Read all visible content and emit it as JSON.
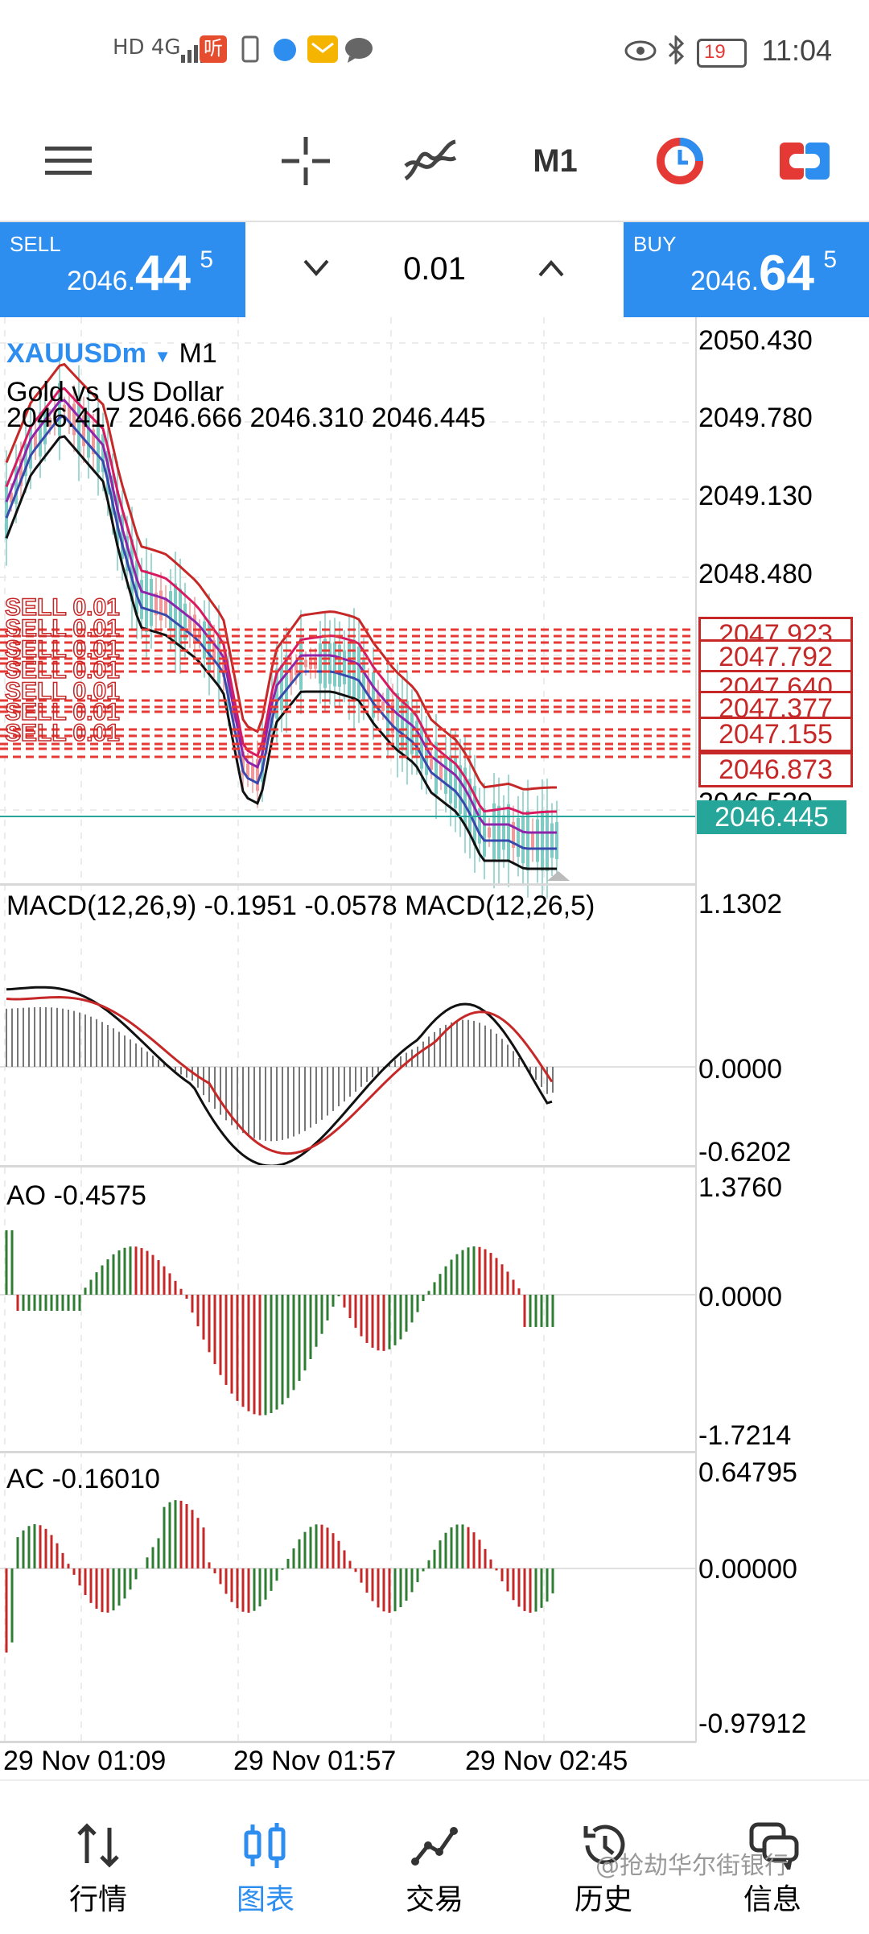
{
  "status_bar": {
    "network": "HD 4G",
    "battery": "19",
    "time": "11:04",
    "app_icon": "听"
  },
  "toolbar": {
    "timeframe": "M1"
  },
  "trade": {
    "sell_label": "SELL",
    "sell_price_main": "2046.",
    "sell_price_big": "44",
    "sell_price_sup": "5",
    "buy_label": "BUY",
    "buy_price_main": "2046.",
    "buy_price_big": "64",
    "buy_price_sup": "5",
    "lot": "0.01"
  },
  "main_chart": {
    "symbol": "XAUUSDm",
    "timeframe": "M1",
    "description": "Gold vs US Dollar",
    "ohlc": "2046.417 2046.666 2046.310 2046.445",
    "axis": [
      "2050.430",
      "2049.780",
      "2049.130",
      "2048.480"
    ],
    "order_prices": [
      "2047.923",
      "2047.792",
      "2047.640",
      "2047.377",
      "2047.155",
      "2046.873"
    ],
    "cut_price": "2046.520",
    "current_price": "2046.445",
    "order_label": "SELL 0.01"
  },
  "macd": {
    "title": "MACD(12,26,9) -0.1951 -0.0578 MACD(12,26,5)",
    "axis": [
      "1.1302",
      "0.0000",
      "-0.6202"
    ]
  },
  "ao": {
    "title": "AO -0.4575",
    "axis": [
      "1.3760",
      "0.0000",
      "-1.7214"
    ]
  },
  "ac": {
    "title": "AC -0.16010",
    "axis": [
      "0.64795",
      "0.00000",
      "-0.97912"
    ]
  },
  "time_labels": [
    "29 Nov 01:09",
    "29 Nov 01:57",
    "29 Nov 02:45"
  ],
  "nav": {
    "items": [
      "行情",
      "图表",
      "交易",
      "历史",
      "信息"
    ],
    "active": "图表"
  },
  "watermark": "@抢劫华尔街银行",
  "colors": {
    "accent": "#2d8ef0",
    "bull": "#2e7d32",
    "bear": "#c62828",
    "price_tag": "#26a69a"
  }
}
